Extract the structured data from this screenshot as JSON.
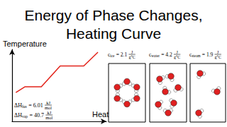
{
  "chart_data": {
    "type": "line",
    "title": "Energy of Phase Changes,\nHeating Curve",
    "x_label": "Heat",
    "y_label": "Temperature",
    "x": [
      0.4,
      1.35,
      3.1,
      5.1,
      7.6,
      9.1
    ],
    "values": [
      4.0,
      4.8,
      4.8,
      7.7,
      7.7,
      9.6
    ],
    "color": "#e2231a",
    "xlim": [
      0,
      10
    ],
    "ylim": [
      0,
      10
    ],
    "tick_labels": false,
    "annotations": [
      {
        "text": "ΔH",
        "subscript": "fus",
        "operator": "=",
        "value": 6.01,
        "numerator": "kJ",
        "denominator": "mol"
      },
      {
        "text": "ΔH",
        "subscript": "vap",
        "operator": "=",
        "value": 40.7,
        "numerator": "kJ",
        "denominator": "mol"
      },
      {
        "text": "c",
        "subscript": "ice",
        "operator": "=",
        "value": 2.1,
        "numerator": "J",
        "denominator": "g°C"
      },
      {
        "text": "c",
        "subscript": "water",
        "operator": "=",
        "value": 4.2,
        "numerator": "J",
        "denominator": "g°C"
      },
      {
        "text": "c",
        "subscript": "steam",
        "operator": "=",
        "value": 1.9,
        "numerator": "J",
        "denominator": "g°C"
      }
    ]
  }
}
